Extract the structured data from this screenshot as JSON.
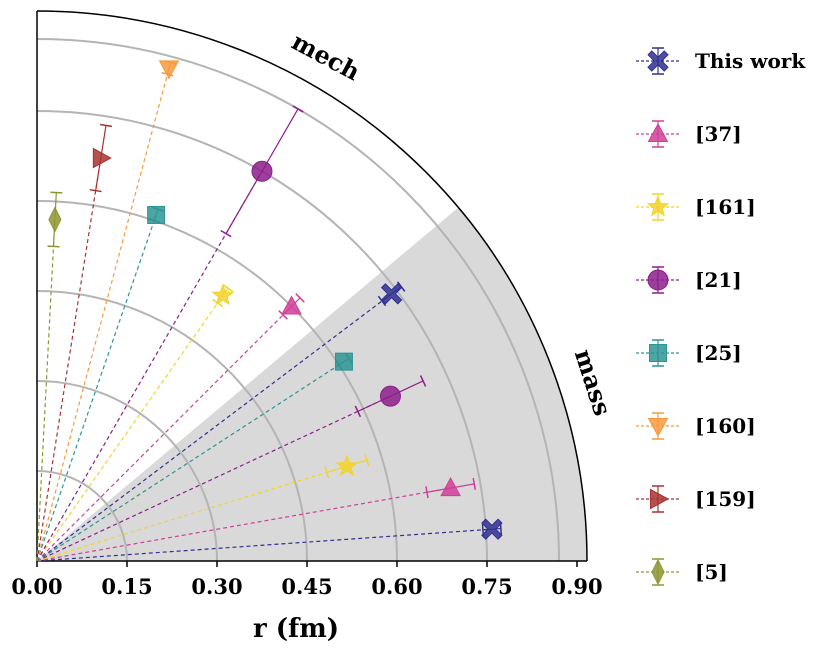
{
  "chart_data": {
    "type": "scatter",
    "subtype": "polar-quadrant radius comparison",
    "xlabel": "r (fm)",
    "rlim": [
      0,
      0.9
    ],
    "xticks": [
      "0.00",
      "0.15",
      "0.30",
      "0.45",
      "0.60",
      "0.75",
      "0.90"
    ],
    "grid_radii": [
      0.15,
      0.3,
      0.45,
      0.6,
      0.75,
      0.87
    ],
    "sectors": {
      "mech": "mech",
      "mass": "mass"
    },
    "colors": {
      "This work": "#303090",
      "[37]": "#d03e98",
      "[161]": "#f2d42a",
      "[21]": "#8b1e8b",
      "[25]": "#2e9494",
      "[160]": "#f79a3e",
      "[159]": "#a83232",
      "[5]": "#8e9632",
      "shade": "#d9d9d9"
    },
    "series": [
      {
        "name": "This work",
        "marker": "X",
        "mech": {
          "r": 0.74,
          "err": 0.02,
          "angle_deg": 37
        },
        "mass": {
          "r": 0.76,
          "err": 0.015,
          "angle_deg": 4
        }
      },
      {
        "name": "[37]",
        "marker": "triangle-up",
        "mech": {
          "r": 0.6,
          "err": 0.02,
          "angle_deg": 45
        },
        "mass": {
          "r": 0.7,
          "err": 0.04,
          "angle_deg": 10
        }
      },
      {
        "name": "[161]",
        "marker": "star",
        "mech": {
          "r": 0.54,
          "err": 0.015,
          "angle_deg": 55
        },
        "mass": {
          "r": 0.54,
          "err": 0.035,
          "angle_deg": 17
        }
      },
      {
        "name": "[21]",
        "marker": "circle",
        "mech": {
          "r": 0.75,
          "err": 0.12,
          "angle_deg": 60
        },
        "mass": {
          "r": 0.65,
          "err": 0.06,
          "angle_deg": 25
        }
      },
      {
        "name": "[25]",
        "marker": "square",
        "mech": {
          "r": 0.61,
          "err": 0.01,
          "angle_deg": 71
        },
        "mass": {
          "r": 0.61,
          "err": 0.01,
          "angle_deg": 33
        }
      },
      {
        "name": "[160]",
        "marker": "triangle-down",
        "mech": {
          "r": 0.85,
          "err": 0.01,
          "angle_deg": 75
        }
      },
      {
        "name": "[159]",
        "marker": "triangle-right",
        "mech": {
          "r": 0.68,
          "err": 0.055,
          "angle_deg": 81
        }
      },
      {
        "name": "[5]",
        "marker": "diamond",
        "mech": {
          "r": 0.57,
          "err": 0.045,
          "angle_deg": 87
        }
      }
    ],
    "legend": {
      "position": "right",
      "entries": [
        "This work",
        "[37]",
        "[161]",
        "[21]",
        "[25]",
        "[160]",
        "[159]",
        "[5]"
      ]
    }
  }
}
